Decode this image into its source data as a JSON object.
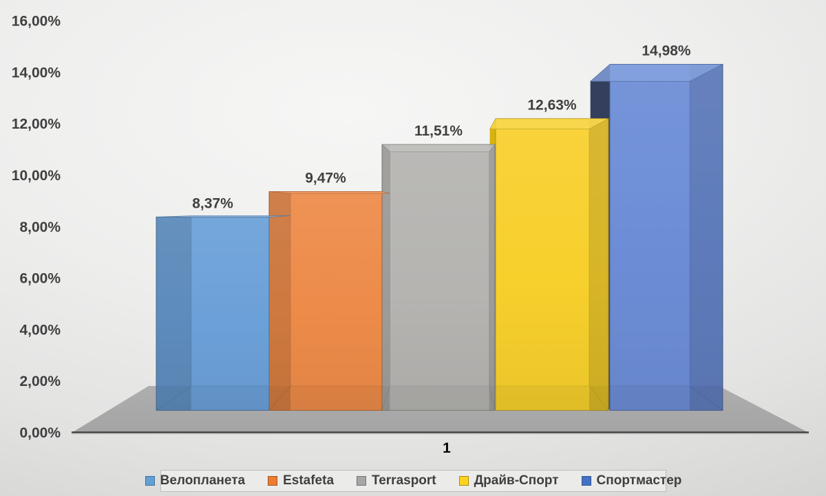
{
  "chart_data": {
    "type": "bar",
    "style": "3d-column",
    "title": "",
    "categories": [
      "1"
    ],
    "series": [
      {
        "name": "Велопланета",
        "value": 8.37,
        "label": "8,37%",
        "color": "#6BA0D8",
        "side_color": "#527FAE",
        "legend_color": "#63A0D4",
        "legend_border": "#41719C"
      },
      {
        "name": "Estafeta",
        "value": 9.47,
        "label": "9,47%",
        "color": "#ED8B49",
        "side_color": "#C96F31",
        "legend_color": "#ED7D31",
        "legend_border": "#9C5420"
      },
      {
        "name": "Terrasport",
        "value": 11.51,
        "label": "11,51%",
        "color": "#B5B4B1",
        "side_color": "#A19D95",
        "legend_color": "#A6A6A6",
        "legend_border": "#747474"
      },
      {
        "name": "Драйв-Спорт",
        "value": 12.63,
        "label": "12,63%",
        "color": "#F7D02C",
        "side_color": "#D8B20E",
        "legend_color": "#FFD320",
        "legend_border": "#A98E00"
      },
      {
        "name": "Спортмастер",
        "value": 14.98,
        "label": "14,98%",
        "color": "#6C8DD6",
        "side_color": "#333F5C",
        "legend_color": "#4472C4",
        "legend_border": "#2F5597"
      }
    ],
    "y_axis": {
      "min": 0,
      "max": 16,
      "step": 2,
      "ticks": [
        "0,00%",
        "2,00%",
        "4,00%",
        "6,00%",
        "8,00%",
        "10,00%",
        "12,00%",
        "14,00%",
        "16,00%"
      ]
    },
    "x_axis": {
      "labels": [
        "1"
      ]
    },
    "legend": {
      "position": "bottom"
    },
    "grid": false,
    "colors": {
      "text": "#3F3F3F",
      "axis": "#454545",
      "floor": "#ABABAB",
      "legend_bg": "#EBEBEA",
      "legend_border": "#BDBDBD"
    }
  }
}
